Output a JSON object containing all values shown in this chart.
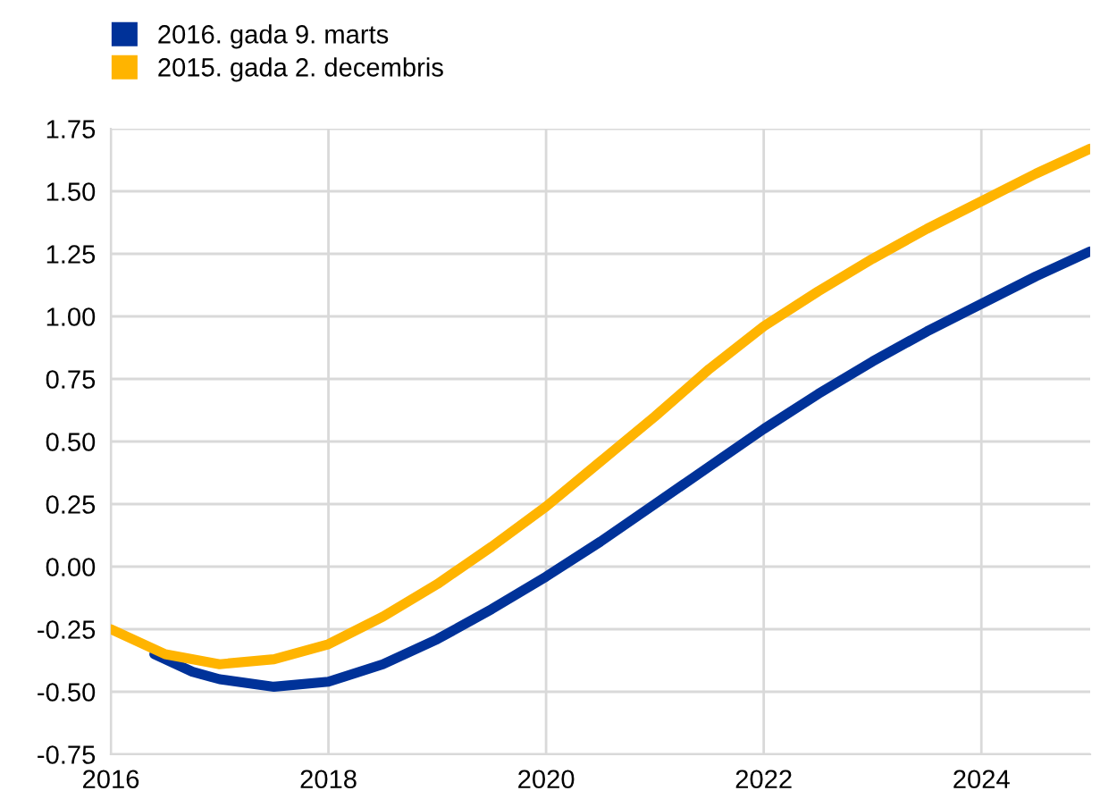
{
  "chart_data": {
    "type": "line",
    "xlim": [
      2016,
      2025
    ],
    "xticks": [
      2016,
      2018,
      2020,
      2022,
      2024
    ],
    "ylim": [
      -0.75,
      1.75
    ],
    "yticks": [
      {
        "value": -0.75,
        "label": "-0.75"
      },
      {
        "value": -0.5,
        "label": "-0.50"
      },
      {
        "value": -0.25,
        "label": "-0.25"
      },
      {
        "value": 0,
        "label": "0.00"
      },
      {
        "value": 0.25,
        "label": "0.25"
      },
      {
        "value": 0.5,
        "label": "0.50"
      },
      {
        "value": 0.75,
        "label": "0.75"
      },
      {
        "value": 1,
        "label": "1.00"
      },
      {
        "value": 1.25,
        "label": "1.25"
      },
      {
        "value": 1.5,
        "label": "1.50"
      },
      {
        "value": 1.75,
        "label": "1.75"
      }
    ],
    "grid": true,
    "legend": "top left",
    "line_style": "solid",
    "marker": "none",
    "series": [
      {
        "name": "2016. gada 9. marts",
        "color": "#003299",
        "x": [
          2016.4,
          2016.75,
          2017,
          2017.5,
          2018,
          2018.5,
          2019,
          2019.5,
          2020,
          2020.5,
          2021,
          2021.5,
          2022,
          2022.5,
          2023,
          2023.5,
          2024,
          2024.5,
          2025
        ],
        "values": [
          -0.35,
          -0.42,
          -0.45,
          -0.48,
          -0.46,
          -0.39,
          -0.29,
          -0.17,
          -0.04,
          0.1,
          0.25,
          0.4,
          0.55,
          0.69,
          0.82,
          0.94,
          1.05,
          1.16,
          1.26
        ]
      },
      {
        "name": "2015. gada 2. decembris",
        "color": "#ffb400",
        "x": [
          2016,
          2016.5,
          2017,
          2017.5,
          2018,
          2018.5,
          2019,
          2019.5,
          2020,
          2020.5,
          2021,
          2021.5,
          2022,
          2022.5,
          2023,
          2023.5,
          2024,
          2024.5,
          2025
        ],
        "values": [
          -0.25,
          -0.35,
          -0.39,
          -0.37,
          -0.31,
          -0.2,
          -0.07,
          0.08,
          0.24,
          0.42,
          0.6,
          0.79,
          0.96,
          1.1,
          1.23,
          1.35,
          1.46,
          1.57,
          1.67
        ]
      }
    ]
  }
}
